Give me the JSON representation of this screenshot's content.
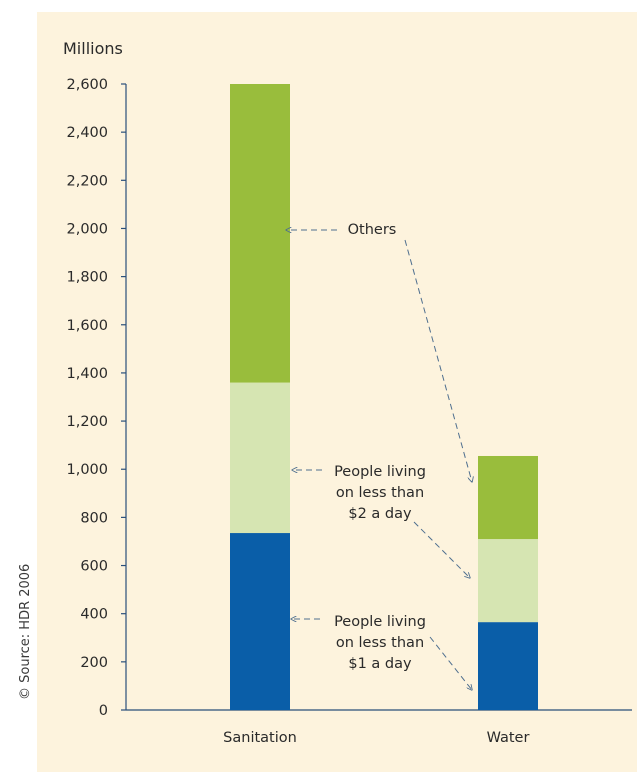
{
  "source_credit": "© Source: HDR 2006",
  "colors": {
    "background": "#fdf3dd",
    "dollar1": "#0a5ea8",
    "dollar2": "#d6e5b2",
    "others": "#99bd3c",
    "axis": "#2a4f7a",
    "arrow": "#4f6f8f"
  },
  "chart_data": {
    "type": "bar",
    "stacked": true,
    "ylabel": "Millions",
    "ylim": [
      0,
      2600
    ],
    "yticks": [
      0,
      200,
      400,
      600,
      800,
      1000,
      1200,
      1400,
      1600,
      1800,
      2000,
      2200,
      2400,
      2600
    ],
    "ytick_labels": [
      "0",
      "200",
      "400",
      "600",
      "800",
      "1,000",
      "1,200",
      "1,400",
      "1,600",
      "1,800",
      "2,000",
      "2,200",
      "2,400",
      "2,600"
    ],
    "categories": [
      "Sanitation",
      "Water"
    ],
    "series": [
      {
        "key": "dollar1",
        "values": [
          735,
          365
        ]
      },
      {
        "key": "dollar2",
        "values": [
          625,
          345
        ]
      },
      {
        "key": "others",
        "values": [
          1240,
          345
        ]
      }
    ],
    "annotations": {
      "others": [
        "Others"
      ],
      "dollar2": [
        "People living",
        "on less than",
        "$2 a day"
      ],
      "dollar1": [
        "People living",
        "on less than",
        "$1 a day"
      ]
    }
  }
}
